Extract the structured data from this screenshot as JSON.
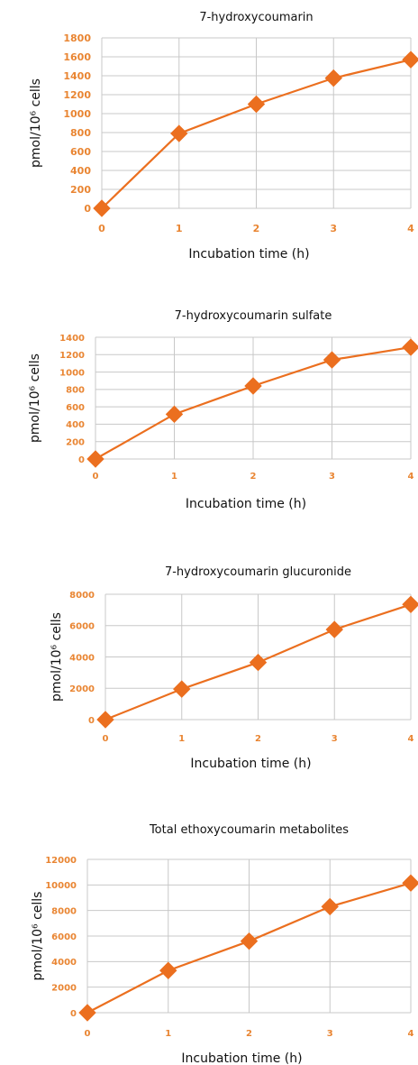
{
  "colors": {
    "series": "#EB6F1F",
    "tick": "#E98532",
    "grid": "#C8C8C8"
  },
  "chart_data": [
    {
      "type": "line",
      "title": "7-hydroxycoumarin",
      "xlabel": "Incubation time (h)",
      "ylabel": "pmol/10⁶ cells",
      "x": [
        0,
        1,
        2,
        3,
        4
      ],
      "xticks": [
        "0",
        "1",
        "2",
        "3",
        "4"
      ],
      "yticks": [
        "0",
        "200",
        "400",
        "600",
        "800",
        "1000",
        "1200",
        "1400",
        "1600",
        "1800"
      ],
      "ylim": [
        0,
        1800
      ],
      "grid": true,
      "series": [
        {
          "values": [
            0,
            790,
            1100,
            1375,
            1570
          ]
        }
      ]
    },
    {
      "type": "line",
      "title": "7-hydroxycoumarin sulfate",
      "xlabel": "Incubation time (h)",
      "ylabel": "pmol/10⁶ cells",
      "x": [
        0,
        1,
        2,
        3,
        4
      ],
      "xticks": [
        "0",
        "1",
        "2",
        "3",
        "4"
      ],
      "yticks": [
        "0",
        "200",
        "400",
        "600",
        "800",
        "1000",
        "1200",
        "1400"
      ],
      "ylim": [
        0,
        1400
      ],
      "grid": true,
      "series": [
        {
          "values": [
            0,
            515,
            840,
            1140,
            1285
          ]
        }
      ]
    },
    {
      "type": "line",
      "title": "7-hydroxycoumarin glucuronide",
      "xlabel": "Incubation time (h)",
      "ylabel": "pmol/10⁶ cells",
      "x": [
        0,
        1,
        2,
        3,
        4
      ],
      "xticks": [
        "0",
        "1",
        "2",
        "3",
        "4"
      ],
      "yticks": [
        "0",
        "2000",
        "4000",
        "6000",
        "8000"
      ],
      "ylim": [
        0,
        8000
      ],
      "grid": true,
      "series": [
        {
          "values": [
            0,
            1950,
            3650,
            5750,
            7350
          ]
        }
      ]
    },
    {
      "type": "line",
      "title": "Total ethoxycoumarin metabolites",
      "xlabel": "Incubation time (h)",
      "ylabel": "pmol/10⁶ cells",
      "x": [
        0,
        1,
        2,
        3,
        4
      ],
      "xticks": [
        "0",
        "1",
        "2",
        "3",
        "4"
      ],
      "yticks": [
        "0",
        "2000",
        "4000",
        "6000",
        "8000",
        "10000",
        "12000"
      ],
      "ylim": [
        0,
        12000
      ],
      "grid": true,
      "series": [
        {
          "values": [
            0,
            3300,
            5600,
            8300,
            10150
          ]
        }
      ]
    }
  ]
}
